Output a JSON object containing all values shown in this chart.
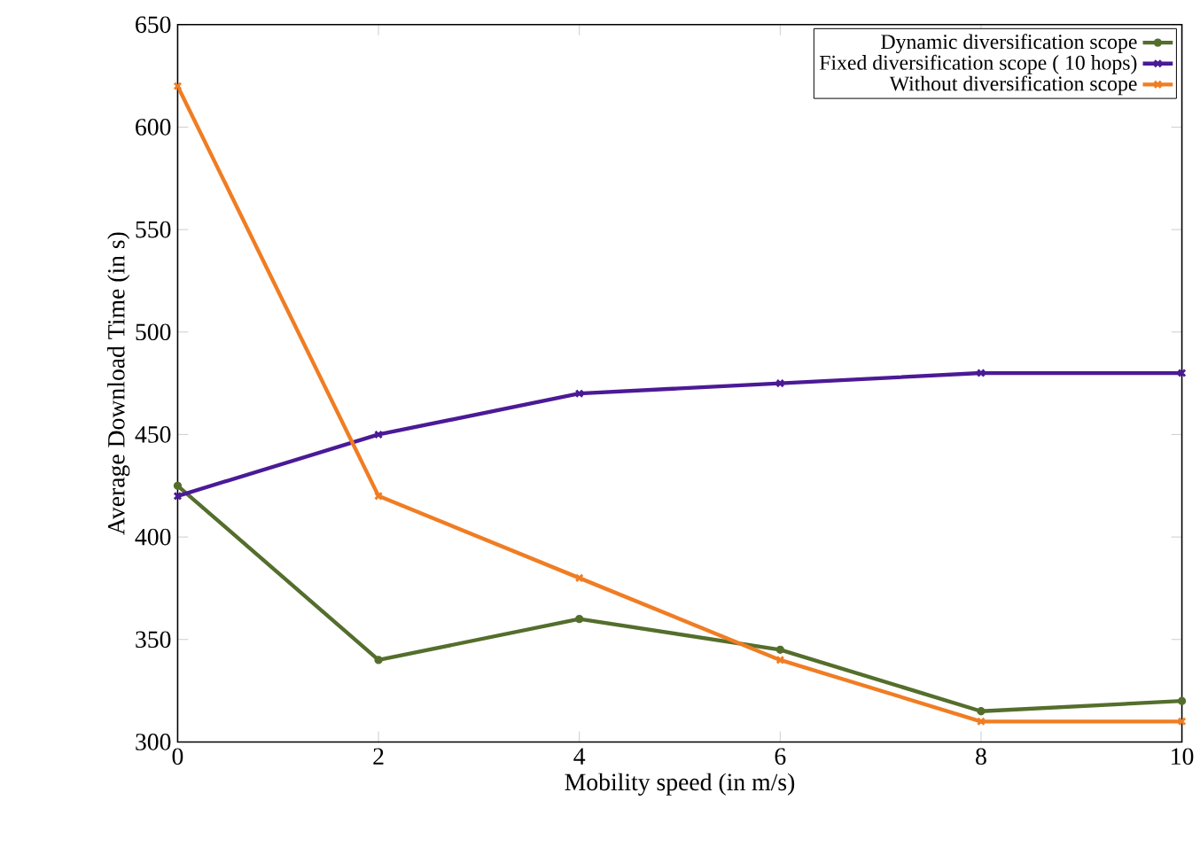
{
  "chart_data": {
    "type": "line",
    "xlabel": "Mobility speed (in m/s)",
    "ylabel": "Average Download Time (in s)",
    "x": [
      0,
      2,
      4,
      6,
      8,
      10
    ],
    "series": [
      {
        "name": "Dynamic diversification scope",
        "color": "#546e2c",
        "marker": "circle",
        "values": [
          425,
          340,
          360,
          345,
          315,
          320
        ]
      },
      {
        "name": "Fixed diversification scope ( 10 hops)",
        "color": "#4b1a96",
        "marker": "cross",
        "values": [
          420,
          450,
          470,
          475,
          480,
          480
        ]
      },
      {
        "name": "Without diversification scope",
        "color": "#f07d23",
        "marker": "cross",
        "values": [
          620,
          420,
          380,
          340,
          310,
          310
        ]
      }
    ],
    "xlim": [
      0,
      10
    ],
    "ylim": [
      300,
      650
    ],
    "xticks": [
      0,
      2,
      4,
      6,
      8,
      10
    ],
    "yticks": [
      300,
      350,
      400,
      450,
      500,
      550,
      600,
      650
    ],
    "grid": false,
    "legend": "top right",
    "line_style": "solid"
  }
}
